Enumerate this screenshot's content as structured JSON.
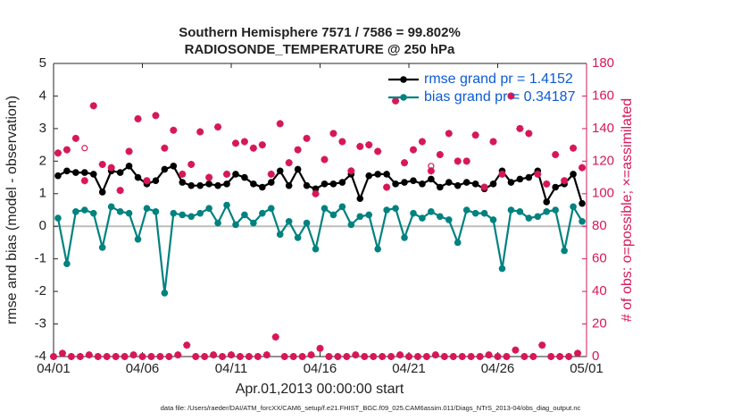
{
  "chart_data": {
    "type": "line",
    "title": "Southern Hemisphere 7571 / 7586 = 99.802%",
    "subtitle": "RADIOSONDE_TEMPERATURE @ 250 hPa",
    "xlabel": "Apr.01,2013 00:00:00 start",
    "ylabel": "rmse and bias (model - observation)",
    "y2label": "# of obs: o=possible; ×=assimilated",
    "footnote": "data file: /Users/raeder/DAI/ATM_forcXX/CAM6_setup/f.e21.FHIST_BGC.f09_025.CAM6assim.011/Diags_NTrS_2013-04/obs_diag_output.nc",
    "xlim": [
      0,
      30
    ],
    "xticks": [
      {
        "value": 0,
        "label": "04/01"
      },
      {
        "value": 5,
        "label": "04/06"
      },
      {
        "value": 10,
        "label": "04/11"
      },
      {
        "value": 15,
        "label": "04/16"
      },
      {
        "value": 20,
        "label": "04/21"
      },
      {
        "value": 25,
        "label": "04/26"
      },
      {
        "value": 30,
        "label": "05/01"
      }
    ],
    "ylim": [
      -4,
      5
    ],
    "yticks": [
      -4,
      -3,
      -2,
      -1,
      0,
      1,
      2,
      3,
      4,
      5
    ],
    "y2lim": [
      0,
      180
    ],
    "y2ticks": [
      0,
      20,
      40,
      60,
      80,
      100,
      120,
      140,
      160,
      180
    ],
    "y2color": "#d6175a",
    "zero_line": true,
    "legend": "upper right",
    "legend_color": "#0b5bd6",
    "x": [
      0.25,
      0.75,
      1.25,
      1.75,
      2.25,
      2.75,
      3.25,
      3.75,
      4.25,
      4.75,
      5.25,
      5.75,
      6.25,
      6.75,
      7.25,
      7.75,
      8.25,
      8.75,
      9.25,
      9.75,
      10.25,
      10.75,
      11.25,
      11.75,
      12.25,
      12.75,
      13.25,
      13.75,
      14.25,
      14.75,
      15.25,
      15.75,
      16.25,
      16.75,
      17.25,
      17.75,
      18.25,
      18.75,
      19.25,
      19.75,
      20.25,
      20.75,
      21.25,
      21.75,
      22.25,
      22.75,
      23.25,
      23.75,
      24.25,
      24.75,
      25.25,
      25.75,
      26.25,
      26.75,
      27.25,
      27.75,
      28.25,
      28.75,
      29.25,
      29.75
    ],
    "series": [
      {
        "name": "rmse grand pr = 1.4152",
        "color": "#000000",
        "marker": "dot",
        "values": [
          1.55,
          1.7,
          1.65,
          1.65,
          1.6,
          1.05,
          1.7,
          1.65,
          1.85,
          1.5,
          1.3,
          1.4,
          1.75,
          1.85,
          1.35,
          1.25,
          1.25,
          1.3,
          1.25,
          1.3,
          1.6,
          1.5,
          1.3,
          1.2,
          1.35,
          1.7,
          1.25,
          1.75,
          1.25,
          1.15,
          1.3,
          1.3,
          1.35,
          1.6,
          0.85,
          1.55,
          1.6,
          1.6,
          1.3,
          1.35,
          1.4,
          1.3,
          1.45,
          1.2,
          1.35,
          1.25,
          1.35,
          1.3,
          1.15,
          1.3,
          1.7,
          1.35,
          1.45,
          1.5,
          1.7,
          0.75,
          1.2,
          1.3,
          1.6,
          0.7
        ]
      },
      {
        "name": "bias grand pr = 0.34187",
        "color": "#00827f",
        "marker": "dot",
        "values": [
          0.25,
          -1.15,
          0.45,
          0.5,
          0.4,
          -0.65,
          0.6,
          0.45,
          0.4,
          -0.4,
          0.55,
          0.45,
          -2.05,
          0.4,
          0.35,
          0.3,
          0.4,
          0.55,
          0.1,
          0.65,
          0.05,
          0.35,
          0.1,
          0.4,
          0.55,
          -0.25,
          0.15,
          -0.35,
          0.1,
          -0.7,
          0.55,
          0.35,
          0.6,
          0.05,
          0.3,
          0.35,
          -0.7,
          0.5,
          0.55,
          -0.35,
          0.4,
          0.25,
          0.45,
          0.3,
          0.2,
          -0.5,
          0.5,
          0.4,
          0.4,
          0.2,
          -1.3,
          0.5,
          0.45,
          0.25,
          0.3,
          0.45,
          0.5,
          -0.75,
          0.6,
          0.15
        ]
      },
      {
        "color": "#d6175a",
        "marker": "circle",
        "axis": "y2",
        "values": [
          125,
          127,
          134,
          128,
          154,
          118,
          116,
          102,
          126,
          146,
          108,
          148,
          128,
          139,
          112,
          118,
          138,
          110,
          141,
          112,
          131,
          132,
          128,
          130,
          112,
          143,
          119,
          127,
          134,
          100,
          121,
          137,
          132,
          114,
          129,
          130,
          126,
          104,
          157,
          119,
          127,
          132,
          117,
          124,
          137,
          120,
          120,
          136,
          104,
          132,
          112,
          160,
          140,
          137,
          112,
          106,
          124,
          108,
          128,
          116
        ]
      },
      {
        "color": "#d6175a",
        "marker": "star",
        "axis": "y2",
        "values": [
          125,
          127,
          134,
          108,
          154,
          118,
          116,
          102,
          126,
          146,
          108,
          148,
          128,
          139,
          112,
          118,
          138,
          110,
          141,
          112,
          131,
          132,
          128,
          130,
          112,
          143,
          119,
          127,
          134,
          100,
          121,
          137,
          132,
          114,
          129,
          130,
          126,
          104,
          157,
          119,
          127,
          132,
          114,
          124,
          137,
          120,
          120,
          136,
          104,
          132,
          112,
          160,
          140,
          137,
          112,
          106,
          124,
          108,
          128,
          116
        ]
      },
      {
        "color": "#d6175a",
        "marker": "circle",
        "axis": "y2",
        "x": [
          0,
          0.5,
          1,
          1.5,
          2,
          2.5,
          3,
          3.5,
          4,
          4.5,
          5,
          5.5,
          6,
          6.5,
          7,
          7.5,
          8,
          8.5,
          9,
          9.5,
          10,
          10.5,
          11,
          11.5,
          12,
          12.5,
          13,
          13.5,
          14,
          14.5,
          15,
          15.5,
          16,
          16.5,
          17,
          17.5,
          18,
          18.5,
          19,
          19.5,
          20,
          20.5,
          21,
          21.5,
          22,
          22.5,
          23,
          23.5,
          24,
          24.5,
          25,
          25.5,
          26,
          26.5,
          27,
          27.5,
          28,
          28.5,
          29,
          29.5
        ],
        "values": [
          0,
          2,
          0,
          0,
          1,
          0,
          0,
          0,
          0,
          1,
          0,
          0,
          0,
          0,
          1,
          7,
          0,
          0,
          1,
          0,
          1,
          0,
          0,
          0,
          1,
          12,
          0,
          0,
          0,
          1,
          5,
          0,
          0,
          0,
          1,
          0,
          0,
          0,
          0,
          1,
          0,
          0,
          0,
          1,
          0,
          0,
          0,
          0,
          0,
          1,
          0,
          0,
          4,
          0,
          0,
          7,
          0,
          0,
          0,
          2
        ]
      },
      {
        "color": "#d6175a",
        "marker": "star",
        "axis": "y2",
        "x": [
          0,
          0.5,
          1,
          1.5,
          2,
          2.5,
          3,
          3.5,
          4,
          4.5,
          5,
          5.5,
          6,
          6.5,
          7,
          7.5,
          8,
          8.5,
          9,
          9.5,
          10,
          10.5,
          11,
          11.5,
          12,
          12.5,
          13,
          13.5,
          14,
          14.5,
          15,
          15.5,
          16,
          16.5,
          17,
          17.5,
          18,
          18.5,
          19,
          19.5,
          20,
          20.5,
          21,
          21.5,
          22,
          22.5,
          23,
          23.5,
          24,
          24.5,
          25,
          25.5,
          26,
          26.5,
          27,
          27.5,
          28,
          28.5,
          29,
          29.5
        ],
        "values": [
          0,
          2,
          0,
          0,
          1,
          0,
          0,
          0,
          0,
          1,
          0,
          0,
          0,
          0,
          1,
          7,
          0,
          0,
          1,
          0,
          1,
          0,
          0,
          0,
          1,
          12,
          0,
          0,
          0,
          1,
          5,
          0,
          0,
          0,
          1,
          0,
          0,
          0,
          0,
          1,
          0,
          0,
          0,
          1,
          0,
          0,
          0,
          0,
          0,
          1,
          0,
          0,
          4,
          0,
          0,
          7,
          0,
          0,
          0,
          2
        ]
      }
    ]
  }
}
